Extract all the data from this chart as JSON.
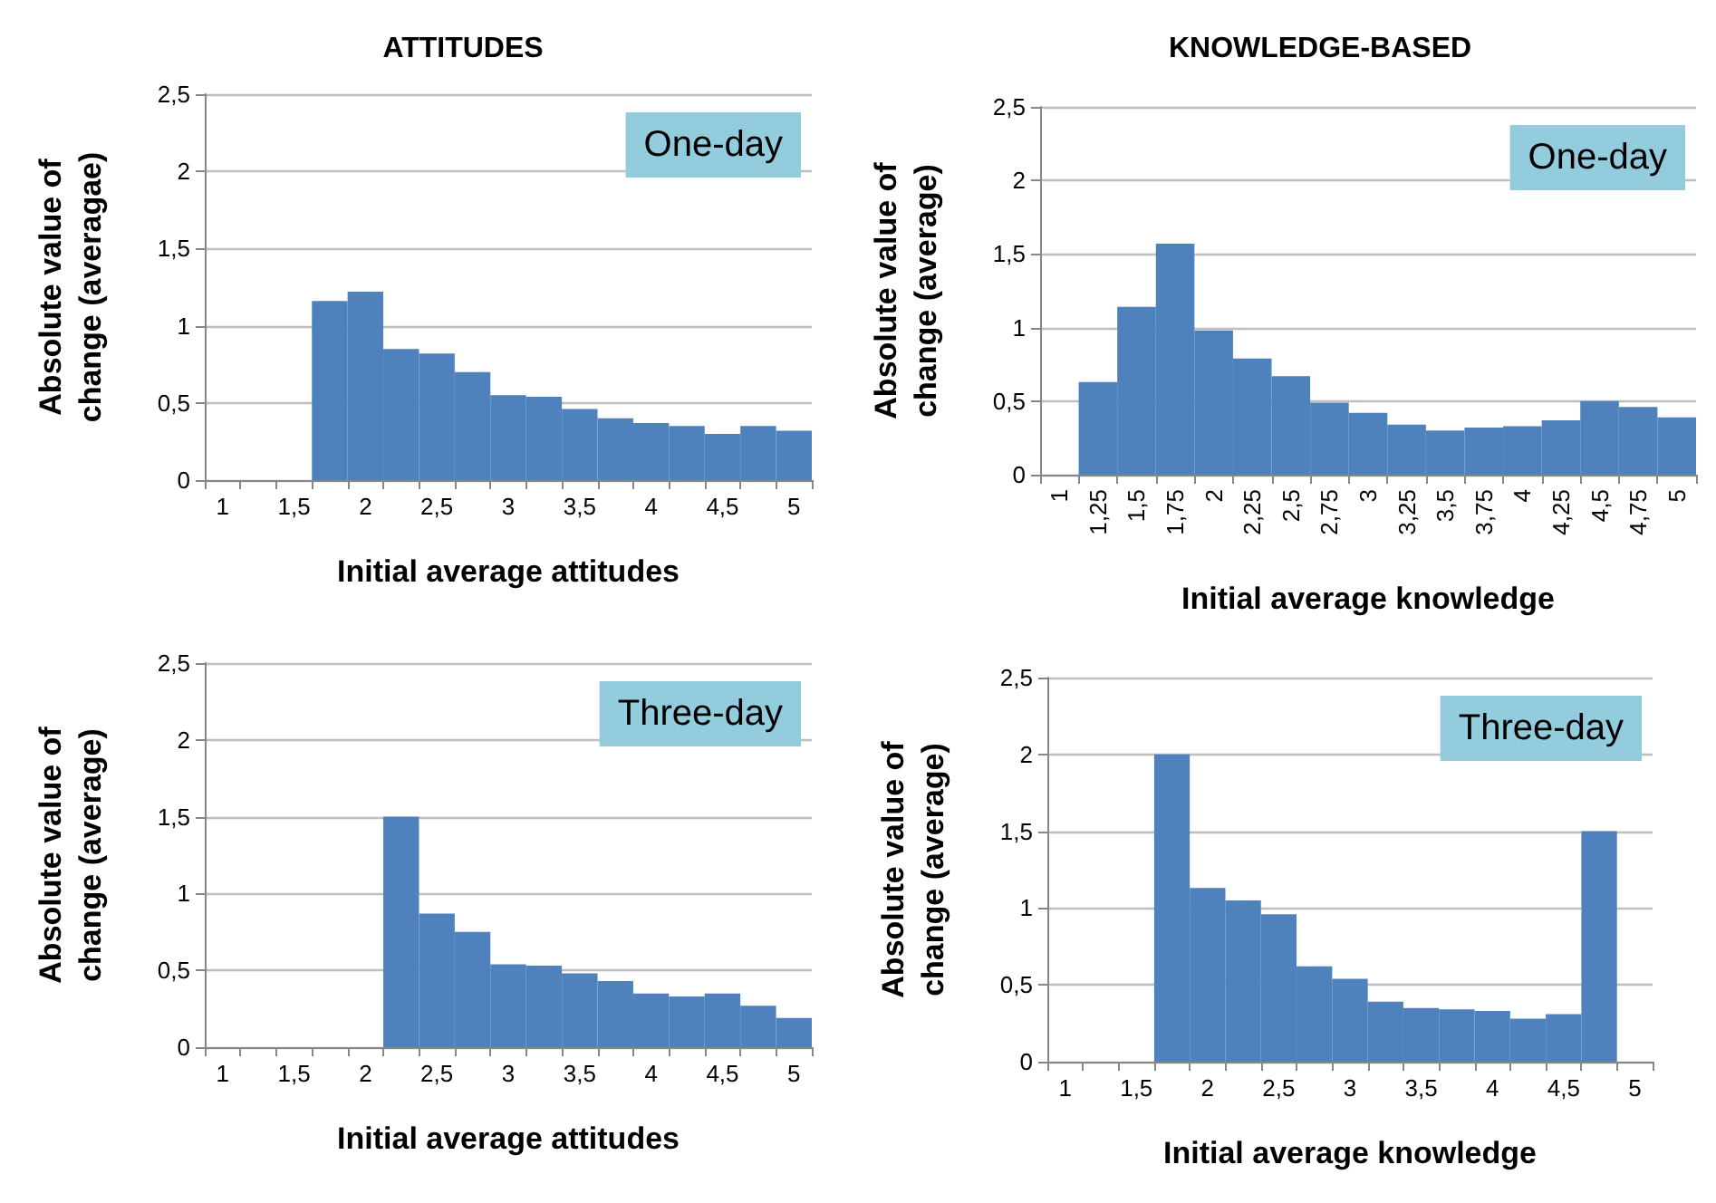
{
  "chart_data": [
    {
      "type": "bar",
      "title": "ATTITUDES",
      "xlabel": "Initial average attitudes",
      "ylabel": "Absolute value of\nchange (averagae)",
      "annotations": [
        "One-day"
      ],
      "categories": [
        "1",
        null,
        "1,5",
        null,
        "2",
        null,
        "2,5",
        null,
        "3",
        null,
        "3,5",
        null,
        "4",
        null,
        "4,5",
        null,
        "5"
      ],
      "values": [
        null,
        null,
        null,
        1.16,
        1.22,
        0.85,
        0.82,
        0.7,
        0.55,
        0.54,
        0.46,
        0.4,
        0.37,
        0.35,
        0.3,
        0.35,
        0.32
      ],
      "color": "#4f81bd",
      "ylim": [
        0,
        2.5
      ],
      "yticks": [
        0,
        {
          "value": 0.5,
          "label": "0,5"
        },
        1,
        {
          "value": 1.5,
          "label": "1,5"
        },
        2,
        {
          "value": 2.5,
          "label": "2,5"
        }
      ],
      "grid": "y"
    },
    {
      "type": "bar",
      "title": "KNOWLEDGE-BASED",
      "xlabel": "Initial average knowledge",
      "ylabel": "Absolute value of\nchange (average)",
      "annotations": [
        "One-day"
      ],
      "categories": [
        "1",
        "1,25",
        "1,5",
        "1,75",
        "2",
        "2,25",
        "2,5",
        "2,75",
        "3",
        "3,25",
        "3,5",
        "3,75",
        "4",
        "4,25",
        "4,5",
        "4,75",
        "5"
      ],
      "values": [
        null,
        0.63,
        1.14,
        1.57,
        0.98,
        0.79,
        0.67,
        0.49,
        0.42,
        0.34,
        0.3,
        0.32,
        0.33,
        0.37,
        0.5,
        0.46,
        0.39
      ],
      "color": "#4f81bd",
      "ylim": [
        0,
        2.5
      ],
      "yticks": [
        0,
        {
          "value": 0.5,
          "label": "0,5"
        },
        1,
        {
          "value": 1.5,
          "label": "1,5"
        },
        2,
        {
          "value": 2.5,
          "label": "2,5"
        }
      ],
      "grid": "y"
    },
    {
      "type": "bar",
      "xlabel": "Initial average attitudes",
      "ylabel": "Absolute value of\nchange (average)",
      "annotations": [
        "Three-day"
      ],
      "categories": [
        "1",
        null,
        "1,5",
        null,
        "2",
        null,
        "2,5",
        null,
        "3",
        null,
        "3,5",
        null,
        "4",
        null,
        "4,5",
        null,
        "5"
      ],
      "values": [
        null,
        null,
        null,
        null,
        null,
        1.5,
        0.87,
        0.75,
        0.54,
        0.53,
        0.48,
        0.43,
        0.35,
        0.33,
        0.35,
        0.27,
        0.19
      ],
      "color": "#4f81bd",
      "ylim": [
        0,
        2.5
      ],
      "yticks": [
        0,
        {
          "value": 0.5,
          "label": "0,5"
        },
        1,
        {
          "value": 1.5,
          "label": "1,5"
        },
        2,
        {
          "value": 2.5,
          "label": "2,5"
        }
      ],
      "grid": "y"
    },
    {
      "type": "bar",
      "xlabel": "Initial average knowledge",
      "ylabel": "Absolute value of\nchange (average)",
      "annotations": [
        "Three-day"
      ],
      "categories": [
        "1",
        null,
        "1,5",
        null,
        "2",
        null,
        "2,5",
        null,
        "3",
        null,
        "3,5",
        null,
        "4",
        null,
        "4,5",
        null,
        "5"
      ],
      "values": [
        null,
        null,
        null,
        2.0,
        1.13,
        1.05,
        0.96,
        0.62,
        0.54,
        0.39,
        0.35,
        0.34,
        0.33,
        0.28,
        0.31,
        1.5,
        null
      ],
      "color": "#4f81bd",
      "ylim": [
        0,
        2.5
      ],
      "yticks": [
        0,
        {
          "value": 0.5,
          "label": "0,5"
        },
        1,
        {
          "value": 1.5,
          "label": "1,5"
        },
        2,
        {
          "value": 2.5,
          "label": "2,5"
        }
      ],
      "grid": "y"
    }
  ]
}
